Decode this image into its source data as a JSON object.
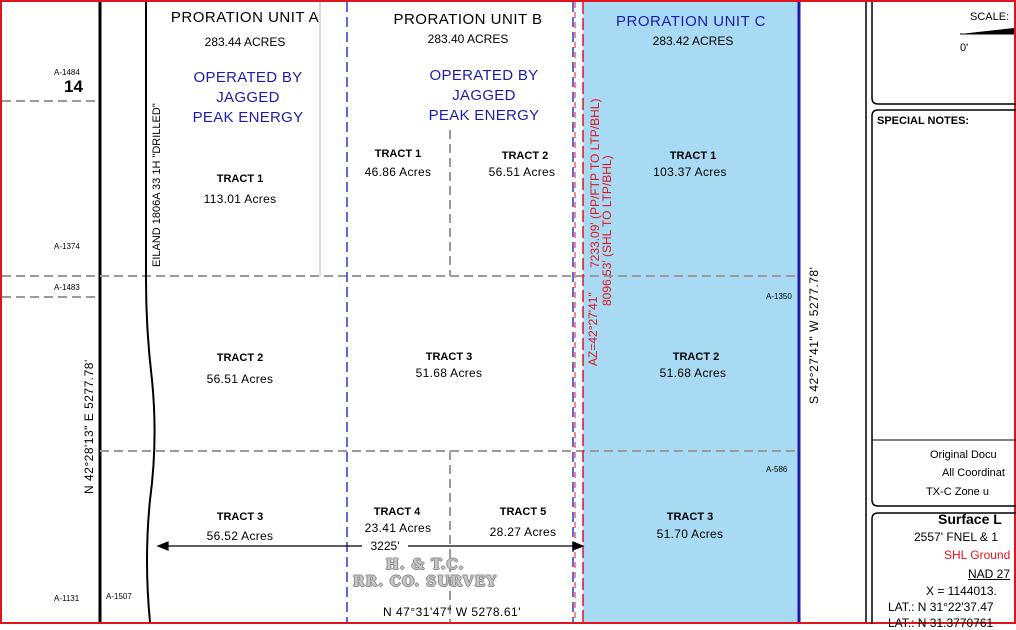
{
  "units": [
    {
      "name": "PRORATION UNIT A",
      "acres": "283.44 ACRES",
      "operator": [
        "OPERATED BY",
        "JAGGED",
        "PEAK ENERGY"
      ]
    },
    {
      "name": "PRORATION UNIT B",
      "acres": "283.40 ACRES",
      "operator": [
        "OPERATED BY",
        "JAGGED",
        "PEAK ENERGY"
      ]
    },
    {
      "name": "PRORATION UNIT C",
      "acres": "283.42 ACRES"
    }
  ],
  "tracts": {
    "a1": {
      "label": "TRACT 1",
      "acres": "113.01 Acres"
    },
    "a2": {
      "label": "TRACT 2",
      "acres": "56.51 Acres"
    },
    "a3": {
      "label": "TRACT 3",
      "acres": "56.52 Acres"
    },
    "b1": {
      "label": "TRACT 1",
      "acres": "46.86 Acres"
    },
    "b2": {
      "label": "TRACT 2",
      "acres": "56.51 Acres"
    },
    "b3": {
      "label": "TRACT 3",
      "acres": "51.68 Acres"
    },
    "b4": {
      "label": "TRACT 4",
      "acres": "23.41 Acres"
    },
    "b5": {
      "label": "TRACT 5",
      "acres": "28.27 Acres"
    },
    "c1": {
      "label": "TRACT 1",
      "acres": "103.37 Acres"
    },
    "c2": {
      "label": "TRACT 2",
      "acres": "51.68 Acres"
    },
    "c3": {
      "label": "TRACT 3",
      "acres": "51.70 Acres"
    }
  },
  "abstracts": {
    "a1484": "A-1484",
    "sec14": "14",
    "a1374": "A-1374",
    "a1483": "A-1483",
    "a1131": "A-1131",
    "a1507": "A-1507",
    "a1350": "A-1350",
    "a586": "A-586"
  },
  "well_label": "EILAND 1806A 33 1H \"DRILLED\"",
  "lateral": {
    "azimuth": "AZ=42°27'41\"",
    "line1": "7233.09' (PP/FTP TO LTP/BHL)",
    "line2": "8096.53' (SHL TO LTP/BHL)"
  },
  "bearings": {
    "west": "N 42°28'13\" E   5277.78'",
    "east": "S 42°27'41\" W   5277.78'",
    "bottom": "N 47°31'47\" W    5278.61'"
  },
  "dimension": "3225'",
  "survey": [
    "H. & T.C.",
    "RR. CO. SURVEY"
  ],
  "legend": {
    "scale_label": "SCALE:",
    "scale_zero": "0'",
    "special_notes": "SPECIAL NOTES:",
    "notes": [
      "Original Docu",
      "All Coordinat",
      "TX-C Zone u"
    ],
    "surface_title": "Surface L",
    "surface_lines": [
      "2557' FNEL & 1",
      "SHL Ground",
      "NAD 27",
      "X = 1144013.",
      "LAT.: N 31°22'37.47",
      "LAT.: N 31.3770761"
    ]
  },
  "colors": {
    "unit_c_fill": "#a9daf3",
    "red": "#e0141e",
    "blue": "#1c1ca8",
    "grid": "#9a9a9a"
  }
}
